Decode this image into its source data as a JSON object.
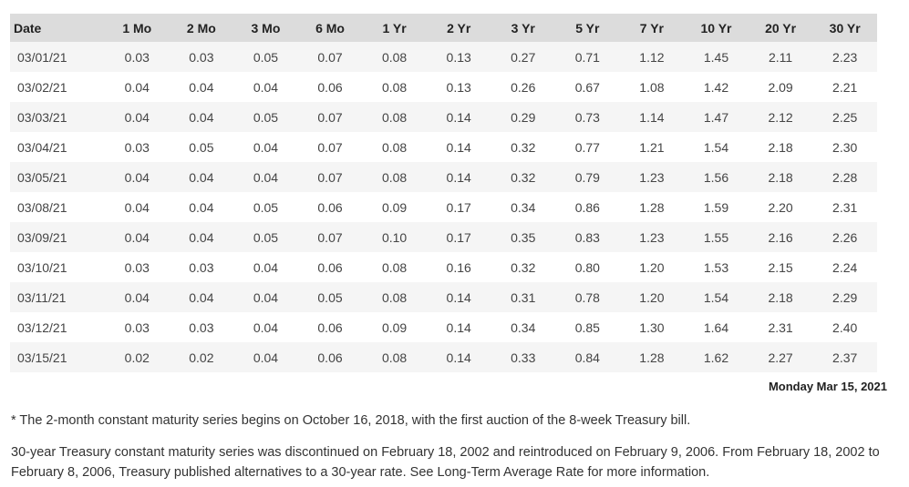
{
  "table": {
    "header": [
      "Date",
      "1 Mo",
      "2 Mo",
      "3 Mo",
      "6 Mo",
      "1 Yr",
      "2 Yr",
      "3 Yr",
      "5 Yr",
      "7 Yr",
      "10 Yr",
      "20 Yr",
      "30 Yr"
    ],
    "rows": [
      [
        "03/01/21",
        "0.03",
        "0.03",
        "0.05",
        "0.07",
        "0.08",
        "0.13",
        "0.27",
        "0.71",
        "1.12",
        "1.45",
        "2.11",
        "2.23"
      ],
      [
        "03/02/21",
        "0.04",
        "0.04",
        "0.04",
        "0.06",
        "0.08",
        "0.13",
        "0.26",
        "0.67",
        "1.08",
        "1.42",
        "2.09",
        "2.21"
      ],
      [
        "03/03/21",
        "0.04",
        "0.04",
        "0.05",
        "0.07",
        "0.08",
        "0.14",
        "0.29",
        "0.73",
        "1.14",
        "1.47",
        "2.12",
        "2.25"
      ],
      [
        "03/04/21",
        "0.03",
        "0.05",
        "0.04",
        "0.07",
        "0.08",
        "0.14",
        "0.32",
        "0.77",
        "1.21",
        "1.54",
        "2.18",
        "2.30"
      ],
      [
        "03/05/21",
        "0.04",
        "0.04",
        "0.04",
        "0.07",
        "0.08",
        "0.14",
        "0.32",
        "0.79",
        "1.23",
        "1.56",
        "2.18",
        "2.28"
      ],
      [
        "03/08/21",
        "0.04",
        "0.04",
        "0.05",
        "0.06",
        "0.09",
        "0.17",
        "0.34",
        "0.86",
        "1.28",
        "1.59",
        "2.20",
        "2.31"
      ],
      [
        "03/09/21",
        "0.04",
        "0.04",
        "0.05",
        "0.07",
        "0.10",
        "0.17",
        "0.35",
        "0.83",
        "1.23",
        "1.55",
        "2.16",
        "2.26"
      ],
      [
        "03/10/21",
        "0.03",
        "0.03",
        "0.04",
        "0.06",
        "0.08",
        "0.16",
        "0.32",
        "0.80",
        "1.20",
        "1.53",
        "2.15",
        "2.24"
      ],
      [
        "03/11/21",
        "0.04",
        "0.04",
        "0.04",
        "0.05",
        "0.08",
        "0.14",
        "0.31",
        "0.78",
        "1.20",
        "1.54",
        "2.18",
        "2.29"
      ],
      [
        "03/12/21",
        "0.03",
        "0.03",
        "0.04",
        "0.06",
        "0.09",
        "0.14",
        "0.34",
        "0.85",
        "1.30",
        "1.64",
        "2.31",
        "2.40"
      ],
      [
        "03/15/21",
        "0.02",
        "0.02",
        "0.04",
        "0.06",
        "0.08",
        "0.14",
        "0.33",
        "0.84",
        "1.28",
        "1.62",
        "2.27",
        "2.37"
      ]
    ]
  },
  "as_of": "Monday Mar 15, 2021",
  "notes": [
    "* The 2-month constant maturity series begins on October 16, 2018, with the first auction of the 8-week Treasury bill.",
    "30-year Treasury constant maturity series was discontinued on February 18, 2002 and reintroduced on February 9, 2006. From February 18, 2002 to February 8, 2006, Treasury published alternatives to a 30-year rate. See Long-Term Average Rate for more information."
  ]
}
